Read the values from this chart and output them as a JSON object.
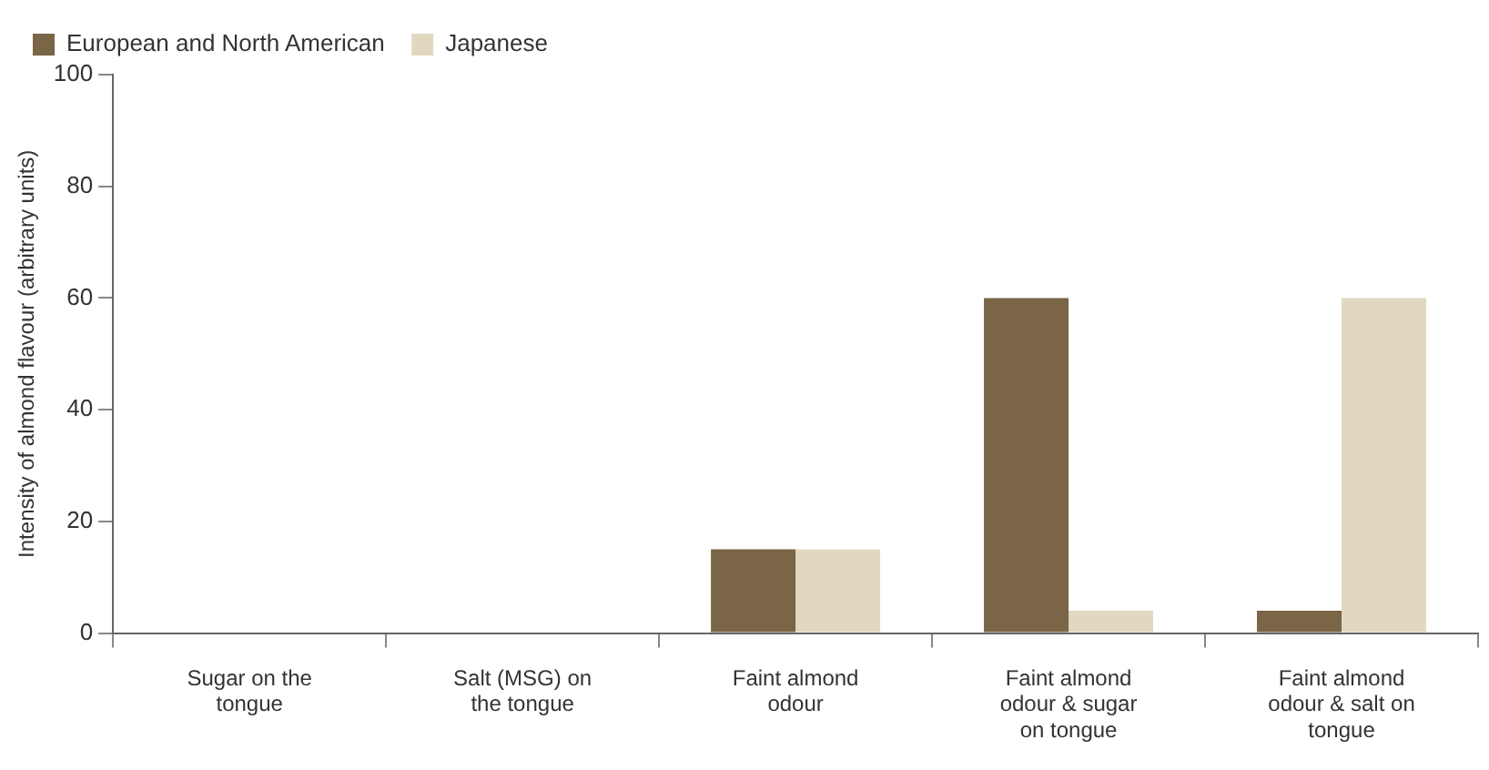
{
  "chart_data": {
    "type": "bar",
    "ylabel": "Intensity of almond flavour (arbitrary units)",
    "categories": [
      "Sugar on the tongue",
      "Salt (MSG) on the tongue",
      "Faint almond odour",
      "Faint almond odour & sugar on tongue",
      "Faint almond odour & salt on tongue"
    ],
    "series": [
      {
        "name": "European and North American",
        "color": "#7a6546",
        "values": [
          0,
          0,
          15,
          60,
          4
        ]
      },
      {
        "name": "Japanese",
        "color": "#e2d8c2",
        "values": [
          0,
          0,
          15,
          4,
          60
        ]
      }
    ],
    "ylim": [
      0,
      100
    ],
    "yticks": [
      0,
      20,
      40,
      60,
      80,
      100
    ],
    "grid": false,
    "legend": "top left"
  }
}
